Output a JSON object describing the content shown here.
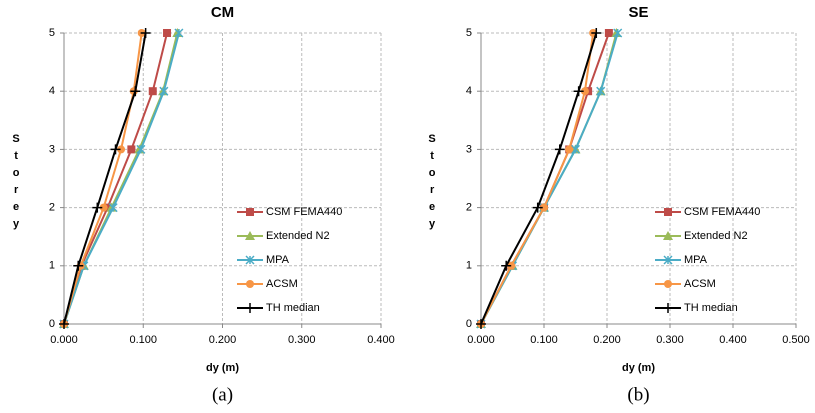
{
  "chart_data": [
    {
      "type": "line",
      "title": "CM",
      "x_label": "dy (m)",
      "y_label": "Storey",
      "caption": "(a)",
      "xlim": [
        0,
        0.4
      ],
      "xticks": [
        {
          "value": 0,
          "label": "0.000"
        },
        {
          "value": 0.1,
          "label": "0.100"
        },
        {
          "value": 0.2,
          "label": "0.200"
        },
        {
          "value": 0.3,
          "label": "0.300"
        },
        {
          "value": 0.4,
          "label": "0.400"
        }
      ],
      "ylim": [
        0,
        5
      ],
      "yticks": [
        0,
        1,
        2,
        3,
        4,
        5
      ],
      "grid": true,
      "series": [
        {
          "name": "CSM FEMA440",
          "color": "#be4b48",
          "marker": "square",
          "x": [
            0,
            0.022,
            0.055,
            0.085,
            0.112,
            0.13
          ],
          "y": [
            0,
            1,
            2,
            3,
            4,
            5
          ]
        },
        {
          "name": "Extended N2",
          "color": "#9bbb59",
          "marker": "triangle",
          "x": [
            0,
            0.025,
            0.06,
            0.095,
            0.125,
            0.143
          ],
          "y": [
            0,
            1,
            2,
            3,
            4,
            5
          ]
        },
        {
          "name": "MPA",
          "color": "#4bacc6",
          "marker": "star",
          "x": [
            0,
            0.025,
            0.062,
            0.097,
            0.126,
            0.145
          ],
          "y": [
            0,
            1,
            2,
            3,
            4,
            5
          ]
        },
        {
          "name": "ACSM",
          "color": "#f79646",
          "marker": "circle",
          "x": [
            0,
            0.021,
            0.05,
            0.072,
            0.088,
            0.098
          ],
          "y": [
            0,
            1,
            2,
            3,
            4,
            5
          ]
        },
        {
          "name": "TH median",
          "color": "#000000",
          "marker": "plus",
          "x": [
            0,
            0.018,
            0.042,
            0.065,
            0.09,
            0.103
          ],
          "y": [
            0,
            1,
            2,
            3,
            4,
            5
          ]
        }
      ]
    },
    {
      "type": "line",
      "title": "SE",
      "x_label": "dy (m)",
      "y_label": "Storey",
      "caption": "(b)",
      "xlim": [
        0,
        0.5
      ],
      "xticks": [
        {
          "value": 0,
          "label": "0.000"
        },
        {
          "value": 0.1,
          "label": "0.100"
        },
        {
          "value": 0.2,
          "label": "0.200"
        },
        {
          "value": 0.3,
          "label": "0.300"
        },
        {
          "value": 0.4,
          "label": "0.400"
        },
        {
          "value": 0.5,
          "label": "0.500"
        }
      ],
      "ylim": [
        0,
        5
      ],
      "yticks": [
        0,
        1,
        2,
        3,
        4,
        5
      ],
      "grid": true,
      "series": [
        {
          "name": "CSM FEMA440",
          "color": "#be4b48",
          "marker": "square",
          "x": [
            0,
            0.048,
            0.1,
            0.14,
            0.17,
            0.203
          ],
          "y": [
            0,
            1,
            2,
            3,
            4,
            5
          ]
        },
        {
          "name": "Extended N2",
          "color": "#9bbb59",
          "marker": "triangle",
          "x": [
            0,
            0.05,
            0.1,
            0.15,
            0.19,
            0.215
          ],
          "y": [
            0,
            1,
            2,
            3,
            4,
            5
          ]
        },
        {
          "name": "MPA",
          "color": "#4bacc6",
          "marker": "star",
          "x": [
            0,
            0.05,
            0.1,
            0.15,
            0.19,
            0.217
          ],
          "y": [
            0,
            1,
            2,
            3,
            4,
            5
          ]
        },
        {
          "name": "ACSM",
          "color": "#f79646",
          "marker": "circle",
          "x": [
            0,
            0.048,
            0.1,
            0.14,
            0.165,
            0.178
          ],
          "y": [
            0,
            1,
            2,
            3,
            4,
            5
          ]
        },
        {
          "name": "TH median",
          "color": "#000000",
          "marker": "plus",
          "x": [
            0,
            0.04,
            0.09,
            0.125,
            0.155,
            0.183
          ],
          "y": [
            0,
            1,
            2,
            3,
            4,
            5
          ]
        }
      ]
    }
  ]
}
